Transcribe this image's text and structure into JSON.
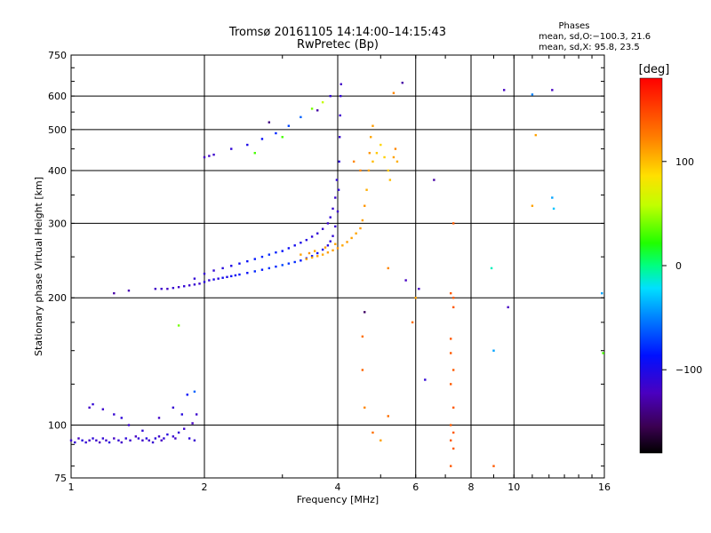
{
  "chart_data": {
    "type": "scatter",
    "title": "Tromsø 20161105 14:14:00–14:15:43",
    "subtitle": "RwPretec (Bp)",
    "xlabel": "Frequency [MHz]",
    "ylabel": "Stationary phase Virtual Height [km]",
    "x_scale": "log",
    "y_scale": "log",
    "xlim": [
      1,
      16
    ],
    "ylim": [
      75,
      750
    ],
    "x_ticks": [
      1,
      2,
      4,
      6,
      8,
      10,
      16
    ],
    "y_ticks": [
      75,
      100,
      200,
      300,
      400,
      500,
      600,
      750
    ],
    "x_gridlines": [
      2,
      4,
      6,
      8,
      10
    ],
    "y_gridlines": [
      100,
      200,
      300,
      400,
      500,
      600
    ],
    "grid": true,
    "legend": {
      "title": "Phases",
      "lines": [
        "mean, sd,O:−100.3, 21.6",
        "mean, sd,X:  95.8, 23.5"
      ],
      "placement": "top-right"
    },
    "colorbar": {
      "label": "[deg]",
      "ticks": [
        100,
        0,
        -100
      ],
      "tick_labels": [
        "100",
        "0",
        "−100"
      ],
      "range": [
        -180,
        180
      ],
      "placement": "right"
    },
    "series": [
      {
        "points": [
          [
            1.0,
            92,
            -115
          ],
          [
            1.02,
            91,
            -110
          ],
          [
            1.04,
            93,
            -120
          ],
          [
            1.06,
            92,
            -105
          ],
          [
            1.08,
            91,
            -112
          ],
          [
            1.1,
            92,
            -118
          ],
          [
            1.12,
            93,
            -108
          ],
          [
            1.14,
            92,
            -115
          ],
          [
            1.16,
            91,
            -122
          ],
          [
            1.18,
            93,
            -110
          ],
          [
            1.2,
            92,
            -116
          ],
          [
            1.22,
            91,
            -105
          ],
          [
            1.25,
            93,
            -119
          ],
          [
            1.28,
            92,
            -111
          ],
          [
            1.3,
            91,
            -117
          ],
          [
            1.33,
            93,
            -108
          ],
          [
            1.36,
            92,
            -114
          ],
          [
            1.4,
            94,
            -120
          ],
          [
            1.42,
            93,
            -110
          ],
          [
            1.45,
            92,
            -115
          ],
          [
            1.48,
            93,
            -105
          ],
          [
            1.5,
            92,
            -118
          ],
          [
            1.53,
            91,
            -112
          ],
          [
            1.55,
            93,
            -108
          ],
          [
            1.58,
            94,
            -116
          ],
          [
            1.6,
            92,
            -120
          ],
          [
            1.62,
            93,
            -110
          ],
          [
            1.65,
            95,
            -105
          ],
          [
            1.7,
            94,
            -113
          ],
          [
            1.72,
            93,
            -118
          ],
          [
            1.75,
            96,
            -110
          ],
          [
            1.8,
            98,
            -115
          ],
          [
            1.85,
            93,
            -108
          ],
          [
            1.9,
            92,
            -112
          ],
          [
            1.88,
            101,
            -120
          ],
          [
            1.92,
            106,
            -115
          ],
          [
            1.1,
            110,
            -118
          ],
          [
            1.12,
            112,
            -110
          ],
          [
            1.18,
            109,
            -115
          ],
          [
            1.25,
            106,
            -112
          ],
          [
            1.3,
            104,
            -108
          ],
          [
            1.35,
            100,
            -115
          ],
          [
            1.45,
            97,
            -110
          ],
          [
            1.58,
            104,
            -118
          ],
          [
            1.7,
            110,
            -112
          ],
          [
            1.78,
            106,
            -105
          ],
          [
            1.83,
            118,
            -90
          ],
          [
            1.9,
            120,
            -60
          ],
          [
            1.75,
            172,
            40
          ],
          [
            1.25,
            205,
            -130
          ],
          [
            1.35,
            208,
            -125
          ],
          [
            1.55,
            210,
            -118
          ],
          [
            1.6,
            210,
            -115
          ],
          [
            1.65,
            210,
            -120
          ],
          [
            1.7,
            211,
            -112
          ],
          [
            1.75,
            212,
            -118
          ],
          [
            1.8,
            213,
            -110
          ],
          [
            1.85,
            214,
            -116
          ],
          [
            1.9,
            215,
            -112
          ],
          [
            1.95,
            216,
            -115
          ],
          [
            2.0,
            218,
            -105
          ],
          [
            2.05,
            220,
            -110
          ],
          [
            2.1,
            221,
            -100
          ],
          [
            2.15,
            222,
            -105
          ],
          [
            2.2,
            223,
            -95
          ],
          [
            2.25,
            224,
            -100
          ],
          [
            2.3,
            225,
            -90
          ],
          [
            2.35,
            226,
            -95
          ],
          [
            2.4,
            227,
            -85
          ],
          [
            2.5,
            229,
            -90
          ],
          [
            2.6,
            231,
            -80
          ],
          [
            2.7,
            233,
            -85
          ],
          [
            2.8,
            235,
            -75
          ],
          [
            2.9,
            237,
            -80
          ],
          [
            3.0,
            239,
            -70
          ],
          [
            3.1,
            241,
            -75
          ],
          [
            3.2,
            243,
            -78
          ],
          [
            3.3,
            245,
            -85
          ],
          [
            3.4,
            248,
            -90
          ],
          [
            3.5,
            251,
            -88
          ],
          [
            3.6,
            255,
            -95
          ],
          [
            3.7,
            260,
            -100
          ],
          [
            3.8,
            266,
            -105
          ],
          [
            3.85,
            272,
            -108
          ],
          [
            3.9,
            280,
            -110
          ],
          [
            3.95,
            295,
            -112
          ],
          [
            4.0,
            320,
            -115
          ],
          [
            4.02,
            360,
            -110
          ],
          [
            4.03,
            420,
            -108
          ],
          [
            4.04,
            480,
            -112
          ],
          [
            4.05,
            540,
            -115
          ],
          [
            4.06,
            600,
            -110
          ],
          [
            4.07,
            640,
            -118
          ],
          [
            1.9,
            222,
            -110
          ],
          [
            2.0,
            228,
            -112
          ],
          [
            2.1,
            232,
            -110
          ],
          [
            2.2,
            235,
            -105
          ],
          [
            2.3,
            238,
            -100
          ],
          [
            2.4,
            241,
            -95
          ],
          [
            2.5,
            244,
            -90
          ],
          [
            2.6,
            247,
            -85
          ],
          [
            2.7,
            250,
            -80
          ],
          [
            2.8,
            253,
            -78
          ],
          [
            2.9,
            256,
            -82
          ],
          [
            3.0,
            258,
            -88
          ],
          [
            3.1,
            262,
            -92
          ],
          [
            3.2,
            266,
            -96
          ],
          [
            3.3,
            270,
            -100
          ],
          [
            3.4,
            274,
            -104
          ],
          [
            3.5,
            279,
            -108
          ],
          [
            3.6,
            284,
            -110
          ],
          [
            3.7,
            291,
            -112
          ],
          [
            3.8,
            300,
            -115
          ],
          [
            3.85,
            310,
            -110
          ],
          [
            3.9,
            325,
            -112
          ],
          [
            3.95,
            345,
            -115
          ],
          [
            3.98,
            380,
            -110
          ],
          [
            2.0,
            430,
            -120
          ],
          [
            2.05,
            433,
            -118
          ],
          [
            2.1,
            436,
            -115
          ],
          [
            2.3,
            450,
            -110
          ],
          [
            2.5,
            460,
            -100
          ],
          [
            2.7,
            475,
            -90
          ],
          [
            2.9,
            490,
            -80
          ],
          [
            3.1,
            510,
            -70
          ],
          [
            3.3,
            535,
            -60
          ],
          [
            3.5,
            560,
            40
          ],
          [
            3.7,
            580,
            60
          ],
          [
            3.85,
            600,
            -110
          ],
          [
            2.8,
            520,
            -140
          ],
          [
            3.6,
            555,
            -130
          ],
          [
            2.6,
            440,
            30
          ],
          [
            3.0,
            480,
            30
          ],
          [
            3.4,
            247,
            110
          ],
          [
            3.5,
            249,
            105
          ],
          [
            3.6,
            251,
            110
          ],
          [
            3.7,
            253,
            108
          ],
          [
            3.8,
            256,
            112
          ],
          [
            3.9,
            259,
            110
          ],
          [
            4.0,
            262,
            115
          ],
          [
            4.1,
            266,
            108
          ],
          [
            4.2,
            271,
            112
          ],
          [
            4.3,
            277,
            110
          ],
          [
            4.4,
            284,
            108
          ],
          [
            4.5,
            292,
            112
          ],
          [
            4.55,
            305,
            110
          ],
          [
            4.6,
            330,
            115
          ],
          [
            4.65,
            360,
            105
          ],
          [
            4.7,
            400,
            110
          ],
          [
            4.72,
            440,
            115
          ],
          [
            4.75,
            480,
            108
          ],
          [
            4.8,
            510,
            112
          ],
          [
            4.35,
            420,
            120
          ],
          [
            4.5,
            400,
            120
          ],
          [
            4.8,
            420,
            100
          ],
          [
            4.9,
            440,
            95
          ],
          [
            5.0,
            460,
            90
          ],
          [
            5.1,
            430,
            92
          ],
          [
            5.2,
            400,
            95
          ],
          [
            5.25,
            380,
            100
          ],
          [
            5.35,
            430,
            110
          ],
          [
            5.4,
            450,
            120
          ],
          [
            5.45,
            420,
            105
          ],
          [
            3.3,
            253,
            110
          ],
          [
            3.45,
            255,
            115
          ],
          [
            3.55,
            258,
            108
          ],
          [
            3.75,
            263,
            112
          ],
          [
            3.95,
            268,
            110
          ],
          [
            5.2,
            235,
            120
          ],
          [
            5.35,
            610,
            120
          ],
          [
            5.6,
            645,
            -130
          ],
          [
            5.7,
            220,
            -120
          ],
          [
            6.0,
            200,
            110
          ],
          [
            6.1,
            210,
            -120
          ],
          [
            6.6,
            380,
            -130
          ],
          [
            4.6,
            185,
            -150
          ],
          [
            4.55,
            162,
            130
          ],
          [
            4.55,
            135,
            135
          ],
          [
            4.6,
            110,
            120
          ],
          [
            5.2,
            105,
            130
          ],
          [
            5.9,
            175,
            130
          ],
          [
            6.3,
            128,
            -110
          ],
          [
            4.8,
            96,
            130
          ],
          [
            5.0,
            92,
            110
          ],
          [
            7.2,
            205,
            140
          ],
          [
            7.3,
            200,
            140
          ],
          [
            7.3,
            190,
            140
          ],
          [
            7.2,
            160,
            140
          ],
          [
            7.2,
            148,
            140
          ],
          [
            7.3,
            135,
            140
          ],
          [
            7.2,
            125,
            140
          ],
          [
            7.3,
            110,
            140
          ],
          [
            7.2,
            100,
            140
          ],
          [
            7.3,
            96,
            140
          ],
          [
            7.2,
            92,
            140
          ],
          [
            7.3,
            88,
            140
          ],
          [
            7.2,
            80,
            140
          ],
          [
            7.3,
            300,
            140
          ],
          [
            8.9,
            235,
            -10
          ],
          [
            9.0,
            150,
            -40
          ],
          [
            9.0,
            80,
            140
          ],
          [
            9.5,
            620,
            -120
          ],
          [
            9.7,
            190,
            -120
          ],
          [
            11.0,
            605,
            -50
          ],
          [
            11.2,
            485,
            110
          ],
          [
            11.0,
            330,
            110
          ],
          [
            12.2,
            345,
            -40
          ],
          [
            12.3,
            325,
            -30
          ],
          [
            12.2,
            620,
            -120
          ],
          [
            15.8,
            205,
            -40
          ],
          [
            15.9,
            148,
            30
          ]
        ]
      }
    ]
  }
}
